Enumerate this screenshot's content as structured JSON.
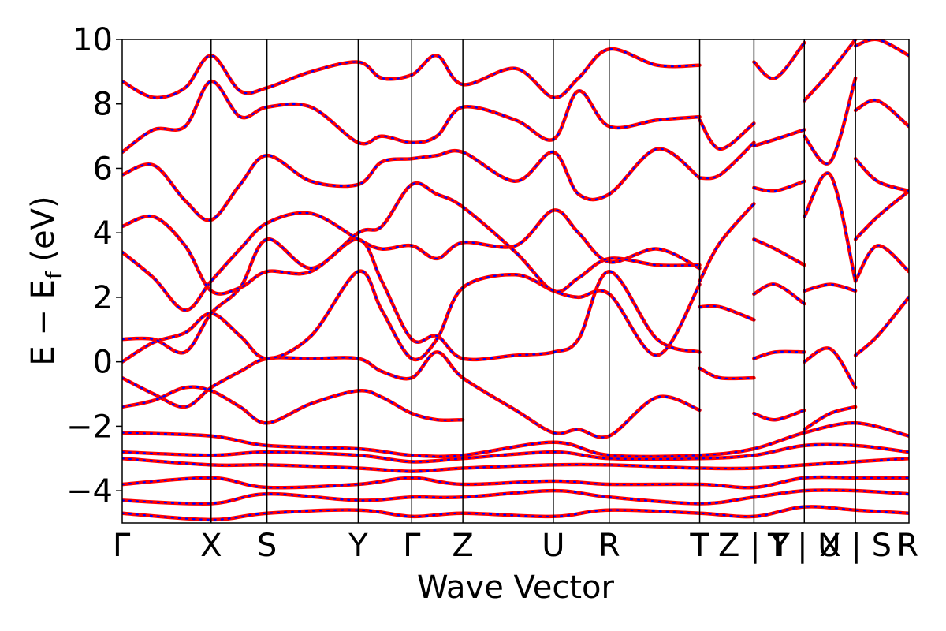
{
  "chart_data": {
    "type": "line",
    "title": "",
    "xlabel": "Wave Vector",
    "ylabel": "E − Eᶠ (eV)",
    "ylabel_parts": {
      "main": "E − E",
      "sub": "f",
      "unit": " (eV)"
    },
    "ylim": [
      -5,
      10
    ],
    "yticks": [
      {
        "value": 10,
        "label": "10"
      },
      {
        "value": 8,
        "label": "8"
      },
      {
        "value": 6,
        "label": "6"
      },
      {
        "value": 4,
        "label": "4"
      },
      {
        "value": 2,
        "label": "2"
      },
      {
        "value": 0,
        "label": "0"
      },
      {
        "value": -2,
        "label": "−2"
      },
      {
        "value": -4,
        "label": "−4"
      }
    ],
    "kpath": [
      {
        "label": "Γ",
        "k": 0.0
      },
      {
        "label": "X",
        "k": 0.113
      },
      {
        "label": "S",
        "k": 0.184
      },
      {
        "label": "Y",
        "k": 0.3
      },
      {
        "label": "Γ",
        "k": 0.368
      },
      {
        "label": "Z",
        "k": 0.433
      },
      {
        "label": "U",
        "k": 0.548
      },
      {
        "label": "R",
        "k": 0.619
      },
      {
        "label": "T",
        "k": 0.734
      },
      {
        "label": "Z | Y",
        "k": 0.803
      },
      {
        "label": "T | U",
        "k": 0.867
      },
      {
        "label": "X | S",
        "k": 0.932
      },
      {
        "label": "R",
        "k": 1.0
      }
    ],
    "grid": false,
    "legend": "none",
    "series_styles": [
      {
        "color": "#ff0000",
        "style": "solid"
      },
      {
        "color": "#0000ff",
        "style": "dotted"
      }
    ],
    "bands": [
      {
        "k": [
          0,
          0.113,
          0.184,
          0.3,
          0.368,
          0.433,
          0.548,
          0.619,
          0.734,
          0.803,
          0.867,
          0.932,
          1.0
        ],
        "e": [
          -2.2,
          -2.3,
          -2.6,
          -2.7,
          -2.9,
          -2.9,
          -2.5,
          -2.9,
          -2.9,
          -2.7,
          -2.2,
          -1.9,
          -2.3
        ]
      },
      {
        "k": [
          0,
          0.113,
          0.184,
          0.3,
          0.368,
          0.433,
          0.548,
          0.619,
          0.734,
          0.803,
          0.867,
          0.932,
          1.0
        ],
        "e": [
          -2.8,
          -2.9,
          -2.8,
          -2.9,
          -3.1,
          -3.0,
          -2.8,
          -3.0,
          -3.0,
          -2.9,
          -2.6,
          -2.6,
          -2.8
        ]
      },
      {
        "k": [
          0,
          0.113,
          0.184,
          0.3,
          0.368,
          0.433,
          0.548,
          0.619,
          0.734,
          0.803,
          0.867,
          0.932,
          1.0
        ],
        "e": [
          -3.0,
          -3.2,
          -3.2,
          -3.3,
          -3.4,
          -3.3,
          -3.2,
          -3.2,
          -3.3,
          -3.3,
          -3.2,
          -3.1,
          -3.0
        ]
      },
      {
        "k": [
          0,
          0.113,
          0.184,
          0.3,
          0.368,
          0.433,
          0.548,
          0.619,
          0.734,
          0.803,
          0.867,
          0.932,
          1.0
        ],
        "e": [
          -3.8,
          -3.6,
          -3.9,
          -3.8,
          -3.6,
          -3.8,
          -3.7,
          -3.8,
          -3.8,
          -3.9,
          -3.6,
          -3.6,
          -3.6
        ]
      },
      {
        "k": [
          0,
          0.113,
          0.184,
          0.3,
          0.368,
          0.433,
          0.548,
          0.619,
          0.734,
          0.803,
          0.867,
          0.932,
          1.0
        ],
        "e": [
          -4.3,
          -4.4,
          -4.1,
          -4.3,
          -4.2,
          -4.2,
          -4.0,
          -4.2,
          -4.4,
          -4.2,
          -4.0,
          -4.0,
          -4.1
        ]
      },
      {
        "k": [
          0,
          0.113,
          0.184,
          0.3,
          0.368,
          0.433,
          0.548,
          0.619,
          0.734,
          0.803,
          0.867,
          0.932,
          1.0
        ],
        "e": [
          -4.7,
          -4.9,
          -4.7,
          -4.6,
          -4.8,
          -4.7,
          -4.8,
          -4.6,
          -4.7,
          -4.8,
          -4.5,
          -4.6,
          -4.7
        ]
      },
      {
        "k": [
          0,
          0.04,
          0.08,
          0.113,
          0.15,
          0.184,
          0.24,
          0.3,
          0.33,
          0.368,
          0.4,
          0.433
        ],
        "e": [
          -1.4,
          -1.2,
          -0.8,
          -0.9,
          -1.4,
          -1.9,
          -1.3,
          -0.9,
          -1.1,
          -1.6,
          -1.8,
          -1.8
        ]
      },
      {
        "k": [
          0,
          0.04,
          0.08,
          0.113,
          0.15,
          0.184,
          0.24,
          0.3,
          0.33,
          0.368,
          0.4,
          0.433,
          0.5,
          0.548,
          0.58,
          0.619,
          0.68,
          0.734
        ],
        "e": [
          -0.5,
          -1.0,
          -1.4,
          -0.8,
          -0.3,
          0.1,
          0.1,
          0.1,
          -0.3,
          -0.5,
          0.3,
          -0.5,
          -1.5,
          -2.2,
          -2.1,
          -2.3,
          -1.1,
          -1.5
        ]
      },
      {
        "k": [
          0,
          0.04,
          0.08,
          0.113,
          0.15,
          0.184,
          0.24,
          0.3,
          0.33,
          0.368,
          0.4,
          0.433,
          0.5,
          0.548,
          0.58,
          0.619,
          0.68,
          0.734
        ],
        "e": [
          0.0,
          0.6,
          0.9,
          1.5,
          0.8,
          0.1,
          0.8,
          2.8,
          1.6,
          0.1,
          0.7,
          2.3,
          2.7,
          2.2,
          2.0,
          2.1,
          0.2,
          2.4
        ]
      },
      {
        "k": [
          0,
          0.04,
          0.08,
          0.113,
          0.15,
          0.184,
          0.24,
          0.3,
          0.33,
          0.368,
          0.4,
          0.433,
          0.5,
          0.548,
          0.58,
          0.619,
          0.68,
          0.734
        ],
        "e": [
          0.7,
          0.7,
          0.3,
          1.5,
          2.3,
          3.8,
          2.9,
          3.8,
          2.5,
          0.7,
          0.8,
          0.1,
          0.2,
          0.3,
          0.7,
          2.8,
          0.7,
          0.3
        ]
      },
      {
        "k": [
          0,
          0.04,
          0.08,
          0.113,
          0.15,
          0.184,
          0.24,
          0.3,
          0.33,
          0.368,
          0.4,
          0.433,
          0.5,
          0.548,
          0.58,
          0.619,
          0.68,
          0.734
        ],
        "e": [
          3.4,
          2.6,
          1.6,
          2.5,
          3.5,
          4.3,
          4.6,
          3.8,
          3.5,
          3.6,
          3.2,
          3.7,
          3.6,
          4.7,
          4.0,
          3.1,
          3.5,
          2.9
        ]
      },
      {
        "k": [
          0,
          0.04,
          0.08,
          0.113,
          0.15,
          0.184,
          0.24,
          0.3,
          0.33,
          0.368,
          0.4,
          0.433,
          0.5,
          0.548,
          0.58,
          0.619,
          0.68,
          0.734
        ],
        "e": [
          4.2,
          4.5,
          3.6,
          2.2,
          2.3,
          2.8,
          2.8,
          4.0,
          4.2,
          5.5,
          5.2,
          4.8,
          3.4,
          2.2,
          2.6,
          3.2,
          3.0,
          3.0
        ]
      },
      {
        "k": [
          0,
          0.04,
          0.08,
          0.113,
          0.15,
          0.184,
          0.24,
          0.3,
          0.33,
          0.368,
          0.4,
          0.433,
          0.5,
          0.548,
          0.58,
          0.619,
          0.68,
          0.734
        ],
        "e": [
          5.8,
          6.1,
          5.0,
          4.4,
          5.5,
          6.4,
          5.6,
          5.5,
          6.2,
          6.3,
          6.4,
          6.5,
          5.6,
          6.5,
          5.2,
          5.2,
          6.6,
          5.7
        ]
      },
      {
        "k": [
          0,
          0.04,
          0.08,
          0.113,
          0.15,
          0.184,
          0.24,
          0.3,
          0.33,
          0.368,
          0.4,
          0.433,
          0.5,
          0.548,
          0.58,
          0.619,
          0.68,
          0.734
        ],
        "e": [
          6.5,
          7.2,
          7.3,
          8.7,
          7.6,
          7.9,
          7.9,
          6.8,
          7.0,
          6.8,
          7.0,
          7.9,
          7.5,
          6.9,
          8.4,
          7.3,
          7.5,
          7.6
        ]
      },
      {
        "k": [
          0,
          0.04,
          0.08,
          0.113,
          0.15,
          0.184,
          0.24,
          0.3,
          0.33,
          0.368,
          0.4,
          0.433,
          0.5,
          0.548,
          0.58,
          0.619,
          0.68,
          0.734
        ],
        "e": [
          8.7,
          8.2,
          8.5,
          9.5,
          8.4,
          8.5,
          9.0,
          9.3,
          8.8,
          8.9,
          9.5,
          8.6,
          9.1,
          8.2,
          8.8,
          9.7,
          9.2,
          9.2
        ]
      },
      {
        "k": [
          0.734,
          0.76,
          0.803
        ],
        "e": [
          1.7,
          1.7,
          1.3
        ]
      },
      {
        "k": [
          0.734,
          0.76,
          0.803
        ],
        "e": [
          -0.2,
          -0.5,
          -0.5
        ]
      },
      {
        "k": [
          0.734,
          0.76,
          0.803
        ],
        "e": [
          2.5,
          3.7,
          4.9
        ]
      },
      {
        "k": [
          0.734,
          0.76,
          0.803
        ],
        "e": [
          5.7,
          5.8,
          6.8
        ]
      },
      {
        "k": [
          0.734,
          0.76,
          0.803
        ],
        "e": [
          7.5,
          6.6,
          7.4
        ]
      },
      {
        "k": [
          0.803,
          0.83,
          0.867
        ],
        "e": [
          0.1,
          0.3,
          0.3
        ]
      },
      {
        "k": [
          0.803,
          0.83,
          0.867
        ],
        "e": [
          2.1,
          2.4,
          1.8
        ]
      },
      {
        "k": [
          0.803,
          0.83,
          0.867
        ],
        "e": [
          3.8,
          3.5,
          3.0
        ]
      },
      {
        "k": [
          0.803,
          0.83,
          0.867
        ],
        "e": [
          5.4,
          5.3,
          5.6
        ]
      },
      {
        "k": [
          0.803,
          0.83,
          0.867
        ],
        "e": [
          6.7,
          6.9,
          7.2
        ]
      },
      {
        "k": [
          0.803,
          0.83,
          0.867
        ],
        "e": [
          9.3,
          8.8,
          9.9
        ]
      },
      {
        "k": [
          0.803,
          0.83,
          0.867
        ],
        "e": [
          -1.6,
          -1.8,
          -1.5
        ]
      },
      {
        "k": [
          0.867,
          0.9,
          0.932
        ],
        "e": [
          0.0,
          0.4,
          -0.8
        ]
      },
      {
        "k": [
          0.867,
          0.9,
          0.932
        ],
        "e": [
          2.2,
          2.4,
          2.2
        ]
      },
      {
        "k": [
          0.867,
          0.9,
          0.932
        ],
        "e": [
          4.5,
          5.8,
          2.5
        ]
      },
      {
        "k": [
          0.867,
          0.9,
          0.932
        ],
        "e": [
          7.0,
          6.2,
          8.8
        ]
      },
      {
        "k": [
          0.867,
          0.9,
          0.932
        ],
        "e": [
          8.1,
          9.0,
          10.0
        ]
      },
      {
        "k": [
          0.867,
          0.9,
          0.932
        ],
        "e": [
          -2.1,
          -1.6,
          -1.4
        ]
      },
      {
        "k": [
          0.932,
          0.96,
          1.0
        ],
        "e": [
          0.2,
          0.8,
          2.0
        ]
      },
      {
        "k": [
          0.932,
          0.96,
          1.0
        ],
        "e": [
          2.5,
          3.6,
          2.8
        ]
      },
      {
        "k": [
          0.932,
          0.96,
          1.0
        ],
        "e": [
          3.8,
          4.5,
          5.3
        ]
      },
      {
        "k": [
          0.932,
          0.96,
          1.0
        ],
        "e": [
          6.3,
          5.6,
          5.3
        ]
      },
      {
        "k": [
          0.932,
          0.96,
          1.0
        ],
        "e": [
          7.8,
          8.1,
          7.3
        ]
      },
      {
        "k": [
          0.932,
          0.96,
          1.0
        ],
        "e": [
          9.8,
          10.0,
          9.5
        ]
      }
    ]
  }
}
